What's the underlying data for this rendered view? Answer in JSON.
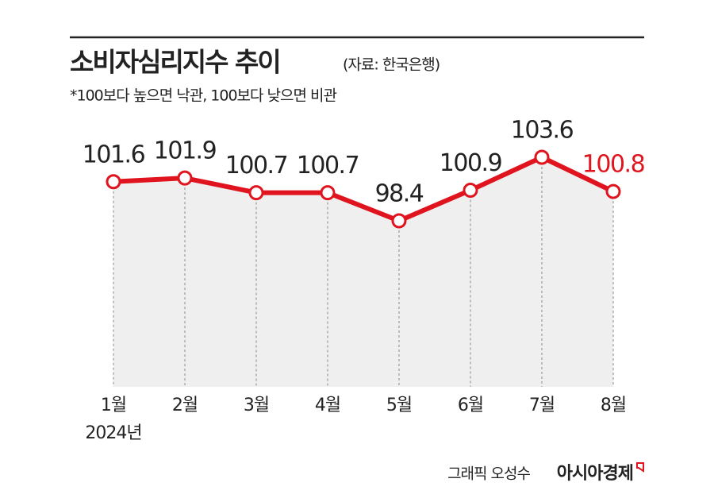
{
  "chart_data": {
    "type": "line",
    "title": "소비자심리지수 추이",
    "source": "(자료: 한국은행)",
    "subtitle": "*100보다 높으면 낙관, 100보다 낮으면 비관",
    "categories": [
      "1월",
      "2월",
      "3월",
      "4월",
      "5월",
      "6월",
      "7월",
      "8월"
    ],
    "year_label": "2024년",
    "series": [
      {
        "color": "#e0141e",
        "values": [
          101.6,
          101.9,
          100.7,
          100.7,
          98.4,
          100.9,
          103.6,
          100.8
        ]
      }
    ],
    "credit": "그래픽 오성수",
    "brand": "아시아경제"
  }
}
